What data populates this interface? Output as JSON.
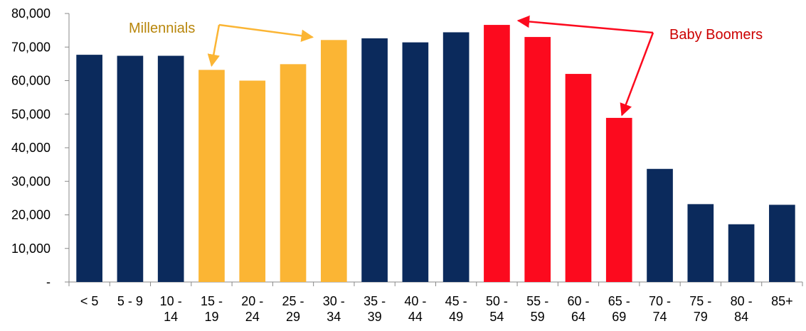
{
  "chart_data": {
    "type": "bar",
    "title": "",
    "xlabel": "",
    "ylabel": "",
    "ylim": [
      0,
      80000
    ],
    "grid": false,
    "y_ticks": [
      {
        "value": 0,
        "label": "-"
      },
      {
        "value": 10000,
        "label": "10,000"
      },
      {
        "value": 20000,
        "label": "20,000"
      },
      {
        "value": 30000,
        "label": "30,000"
      },
      {
        "value": 40000,
        "label": "40,000"
      },
      {
        "value": 50000,
        "label": "50,000"
      },
      {
        "value": 60000,
        "label": "60,000"
      },
      {
        "value": 70000,
        "label": "70,000"
      },
      {
        "value": 80000,
        "label": "80,000"
      }
    ],
    "categories": [
      [
        "< 5"
      ],
      [
        "5 - 9"
      ],
      [
        "10 -",
        "14"
      ],
      [
        "15 -",
        "19"
      ],
      [
        "20 -",
        "24"
      ],
      [
        "25 -",
        "29"
      ],
      [
        "30 -",
        "34"
      ],
      [
        "35 -",
        "39"
      ],
      [
        "40 -",
        "44"
      ],
      [
        "45 -",
        "49"
      ],
      [
        "50 -",
        "54"
      ],
      [
        "55 -",
        "59"
      ],
      [
        "60 -",
        "64"
      ],
      [
        "65 -",
        "69"
      ],
      [
        "70 -",
        "74"
      ],
      [
        "75 -",
        "79"
      ],
      [
        "80 -",
        "84"
      ],
      [
        "85+"
      ]
    ],
    "values": [
      67700,
      67400,
      67400,
      63200,
      60000,
      64900,
      72100,
      72600,
      71400,
      74400,
      76600,
      73000,
      62000,
      48900,
      33700,
      23200,
      17200,
      23000
    ],
    "groups": [
      "other",
      "other",
      "other",
      "millennials",
      "millennials",
      "millennials",
      "millennials",
      "other",
      "other",
      "other",
      "boomers",
      "boomers",
      "boomers",
      "boomers",
      "other",
      "other",
      "other",
      "other"
    ],
    "colors": {
      "other": "#0b2a5c",
      "millennials": "#fbb534",
      "boomers": "#fc0a1e",
      "millennials_text": "#b8860b",
      "boomers_text": "#cc0000"
    },
    "annotations": [
      {
        "text": "Millennials",
        "group": "millennials",
        "targets": [
          3,
          6
        ]
      },
      {
        "text": "Baby Boomers",
        "group": "boomers",
        "targets": [
          10,
          13
        ]
      }
    ]
  }
}
